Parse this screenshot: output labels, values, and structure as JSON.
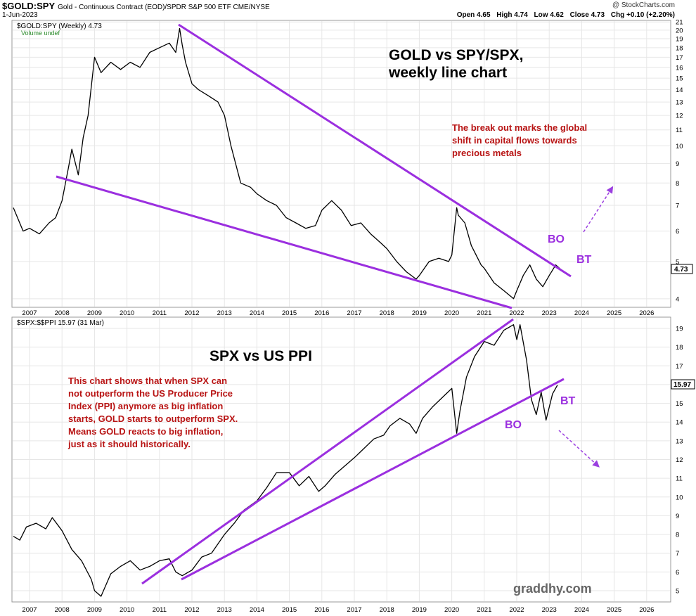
{
  "header": {
    "symbol": "$GOLD:SPY",
    "description": "Gold - Continuous Contract (EOD)/SPDR S&P 500 ETF  CME/NYSE",
    "date": "1-Jun-2023",
    "credit": "@ StockCharts.com",
    "open": "Open 4.65",
    "high": "High 4.74",
    "low": "Low 4.62",
    "close": "Close 4.73",
    "change": "Chg +0.10 (+2.20%)"
  },
  "chart_data": [
    {
      "type": "line",
      "legend": "$GOLD:SPY (Weekly) 4.73",
      "legend_sub": "Volume undef",
      "title": "GOLD vs SPY/SPX,",
      "subtitle": "weekly line chart",
      "annotation": [
        "The break out marks the global",
        "shift in capital flows towards",
        "precious metals"
      ],
      "labels": {
        "bo": "BO",
        "bt": "BT"
      },
      "last_value_label": "4.73",
      "scale": "log",
      "ylim": [
        3.8,
        21.2
      ],
      "y_ticks": [
        4,
        5,
        6,
        7,
        8,
        9,
        10,
        11,
        12,
        13,
        14,
        15,
        16,
        17,
        18,
        19,
        20,
        21
      ],
      "x_ticks": [
        "2007",
        "2008",
        "2009",
        "2010",
        "2011",
        "2012",
        "2013",
        "2014",
        "2015",
        "2016",
        "2017",
        "2018",
        "2019",
        "2020",
        "2021",
        "2022",
        "2023",
        "2024",
        "2025",
        "2026"
      ],
      "grid": true,
      "series": [
        {
          "x": [
            2006.5,
            2006.8,
            2007.0,
            2007.3,
            2007.6,
            2007.8,
            2008.0,
            2008.2,
            2008.3,
            2008.5,
            2008.65,
            2008.8,
            2009.0,
            2009.2,
            2009.5,
            2009.8,
            2010.1,
            2010.4,
            2010.7,
            2011.0,
            2011.3,
            2011.5,
            2011.62,
            2011.7,
            2011.8,
            2012.0,
            2012.2,
            2012.5,
            2012.8,
            2013.0,
            2013.2,
            2013.5,
            2013.8,
            2014.0,
            2014.3,
            2014.6,
            2014.9,
            2015.2,
            2015.5,
            2015.8,
            2016.0,
            2016.3,
            2016.6,
            2016.9,
            2017.2,
            2017.5,
            2017.8,
            2018.0,
            2018.3,
            2018.6,
            2018.9,
            2019.0,
            2019.3,
            2019.6,
            2019.9,
            2020.0,
            2020.15,
            2020.2,
            2020.4,
            2020.6,
            2020.9,
            2021.0,
            2021.3,
            2021.6,
            2021.9,
            2022.0,
            2022.2,
            2022.4,
            2022.6,
            2022.8,
            2023.0,
            2023.2,
            2023.4
          ],
          "y": [
            6.9,
            6.0,
            6.1,
            5.9,
            6.3,
            6.5,
            7.2,
            8.8,
            9.8,
            8.4,
            10.5,
            12.0,
            17.0,
            15.5,
            16.5,
            15.8,
            16.5,
            16.0,
            17.5,
            18.0,
            18.5,
            17.5,
            20.2,
            18.3,
            16.5,
            14.5,
            14.0,
            13.5,
            13.0,
            12.0,
            10.0,
            8.0,
            7.8,
            7.5,
            7.2,
            7.0,
            6.5,
            6.3,
            6.1,
            6.2,
            6.8,
            7.2,
            6.8,
            6.2,
            6.3,
            5.9,
            5.6,
            5.4,
            5.0,
            4.7,
            4.5,
            4.6,
            5.0,
            5.1,
            5.0,
            5.2,
            6.9,
            6.6,
            6.3,
            5.5,
            4.9,
            4.8,
            4.4,
            4.2,
            4.0,
            4.2,
            4.6,
            4.9,
            4.5,
            4.3,
            4.6,
            4.9,
            4.73
          ]
        }
      ]
    },
    {
      "type": "line",
      "legend": "$SPX:$$PPI 15.97 (31 Mar)",
      "title": "SPX vs US PPI",
      "annotation": [
        "This chart shows that when SPX can",
        "not outperform the US Producer Price",
        "Index (PPI) anymore as big inflation",
        "starts, GOLD starts to outperform SPX.",
        "Means GOLD reacts to big inflation,",
        "just as it should historically."
      ],
      "labels": {
        "bo": "BO",
        "bt": "BT"
      },
      "last_value_label": "15.97",
      "watermark": "graddhy.com",
      "ylim": [
        4.4,
        19.6
      ],
      "y_ticks": [
        5,
        6,
        7,
        8,
        9,
        10,
        11,
        12,
        13,
        14,
        15,
        16,
        17,
        18,
        19
      ],
      "x_ticks": [
        "2007",
        "2008",
        "2009",
        "2010",
        "2011",
        "2012",
        "2013",
        "2014",
        "2015",
        "2016",
        "2017",
        "2018",
        "2019",
        "2020",
        "2021",
        "2022",
        "2023",
        "2024",
        "2025",
        "2026"
      ],
      "grid": true,
      "series": [
        {
          "x": [
            2006.5,
            2006.7,
            2006.9,
            2007.2,
            2007.5,
            2007.7,
            2008.0,
            2008.3,
            2008.6,
            2008.9,
            2009.0,
            2009.2,
            2009.5,
            2009.8,
            2010.1,
            2010.4,
            2010.7,
            2011.0,
            2011.3,
            2011.5,
            2011.7,
            2012.0,
            2012.3,
            2012.6,
            2013.0,
            2013.3,
            2013.6,
            2014.0,
            2014.3,
            2014.6,
            2015.0,
            2015.3,
            2015.6,
            2015.9,
            2016.1,
            2016.4,
            2016.8,
            2017.0,
            2017.3,
            2017.6,
            2017.9,
            2018.1,
            2018.4,
            2018.7,
            2018.9,
            2019.1,
            2019.4,
            2019.7,
            2020.0,
            2020.15,
            2020.25,
            2020.45,
            2020.7,
            2021.0,
            2021.3,
            2021.6,
            2021.9,
            2022.0,
            2022.1,
            2022.3,
            2022.45,
            2022.6,
            2022.75,
            2022.9,
            2023.1,
            2023.25
          ],
          "y": [
            7.9,
            7.7,
            8.4,
            8.6,
            8.3,
            8.9,
            8.2,
            7.2,
            6.6,
            5.6,
            5.0,
            4.7,
            5.9,
            6.3,
            6.6,
            6.1,
            6.3,
            6.6,
            6.7,
            6.0,
            5.8,
            6.1,
            6.8,
            7.0,
            8.0,
            8.6,
            9.3,
            9.8,
            10.5,
            11.3,
            11.3,
            10.6,
            11.1,
            10.3,
            10.6,
            11.2,
            11.8,
            12.1,
            12.6,
            13.1,
            13.3,
            13.8,
            14.2,
            13.9,
            13.4,
            14.2,
            14.8,
            15.3,
            15.8,
            13.4,
            14.6,
            16.4,
            17.5,
            18.3,
            18.1,
            18.9,
            19.2,
            18.4,
            19.2,
            17.3,
            15.2,
            14.4,
            15.6,
            14.1,
            15.5,
            15.97
          ]
        }
      ]
    }
  ]
}
